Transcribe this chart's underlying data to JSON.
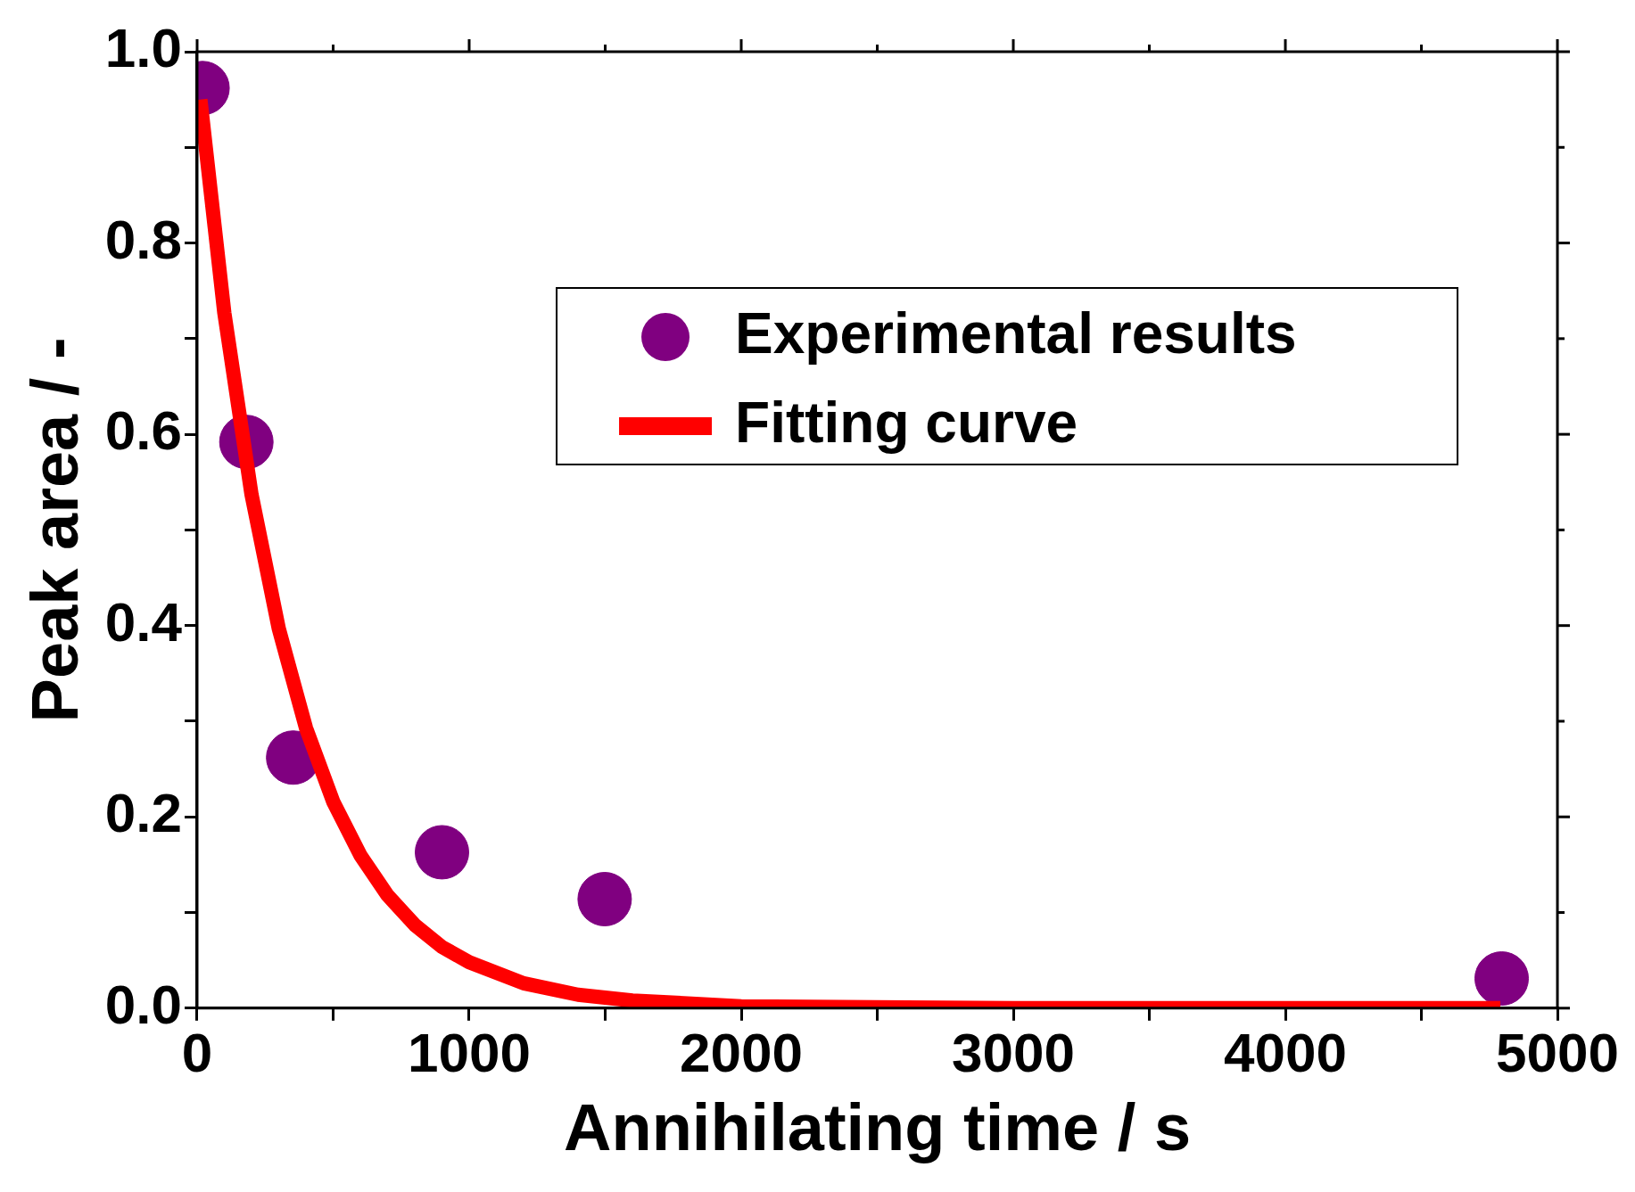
{
  "chart_data": {
    "type": "scatter",
    "xlabel": "Annihilating time / s",
    "ylabel": "Peak area / -",
    "series": [
      {
        "name": "Experimental results",
        "color": "#800080",
        "x": [
          20,
          181,
          353,
          900,
          1498,
          4795
        ],
        "values": [
          0.962,
          0.592,
          0.262,
          0.163,
          0.114,
          0.031
        ]
      },
      {
        "name": "Fitting curve",
        "type": "line",
        "marker": "none",
        "color": "#ff0000",
        "x": [
          12,
          100,
          200,
          300,
          400,
          500,
          600,
          700,
          800,
          900,
          1000,
          1200,
          1400,
          1600,
          2000,
          3000,
          4790
        ],
        "values": [
          0.95,
          0.727,
          0.537,
          0.397,
          0.293,
          0.216,
          0.16,
          0.118,
          0.087,
          0.064,
          0.048,
          0.026,
          0.014,
          0.008,
          0.002,
          0,
          0
        ]
      }
    ],
    "xlim": [
      0,
      5000
    ],
    "ylim": [
      0,
      1
    ],
    "xticks": [
      0,
      {
        "value": 500,
        "label": null
      },
      1000,
      {
        "value": 1500,
        "label": null
      },
      2000,
      {
        "value": 2500,
        "label": null
      },
      3000,
      {
        "value": 3500,
        "label": null
      },
      4000,
      {
        "value": 4500,
        "label": null
      },
      5000
    ],
    "yticks": [
      {
        "value": 0,
        "label": "0.0"
      },
      {
        "value": 0.1,
        "label": null
      },
      {
        "value": 0.2,
        "label": "0.2"
      },
      {
        "value": 0.3,
        "label": null
      },
      {
        "value": 0.4,
        "label": "0.4"
      },
      {
        "value": 0.5,
        "label": null
      },
      {
        "value": 0.6,
        "label": "0.6"
      },
      {
        "value": 0.7,
        "label": null
      },
      {
        "value": 0.8,
        "label": "0.8"
      },
      {
        "value": 0.9,
        "label": null
      },
      {
        "value": 1,
        "label": "1.0"
      }
    ],
    "legend": "top right",
    "grid": false,
    "marker": "circle",
    "line_style": "solid"
  }
}
